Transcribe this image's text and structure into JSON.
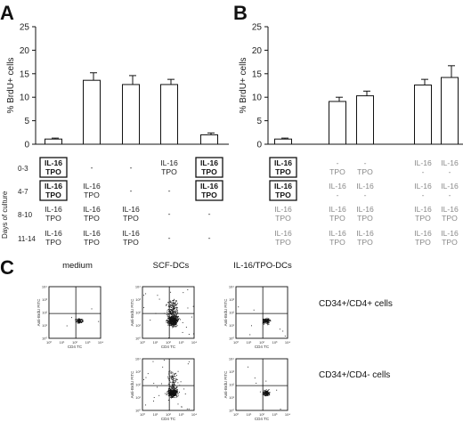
{
  "panels": {
    "a": "A",
    "b": "B",
    "c": "C"
  },
  "chart_data": [
    {
      "type": "bar",
      "panel": "A",
      "ylabel": "% BrdU+ cells",
      "ylim": [
        0,
        25
      ],
      "yticks": [
        "0",
        "5",
        "10",
        "15",
        "20",
        "25"
      ],
      "series": [
        {
          "values": [
            1.1,
            13.6,
            12.7,
            12.7,
            2.0
          ],
          "errors": [
            0.2,
            1.6,
            1.9,
            1.1,
            0.4
          ]
        }
      ],
      "row_label": "Days of culture",
      "rows": [
        {
          "label": "0-3",
          "cells": [
            "IL-16 TPO",
            "-",
            "-",
            "IL-16 TPO",
            "IL-16 TPO"
          ],
          "boxed": [
            true,
            false,
            false,
            false,
            true
          ]
        },
        {
          "label": "4-7",
          "cells": [
            "IL-16 TPO",
            "IL-16 TPO",
            "-",
            "-",
            "IL-16 TPO"
          ],
          "boxed": [
            true,
            false,
            false,
            false,
            true
          ]
        },
        {
          "label": "8-10",
          "cells": [
            "IL-16 TPO",
            "IL-16 TPO",
            "IL-16 TPO",
            "-",
            "-"
          ],
          "boxed": [
            false,
            false,
            false,
            false,
            false
          ]
        },
        {
          "label": "11-14",
          "cells": [
            "IL-16 TPO",
            "IL-16 TPO",
            "IL-16 TPO",
            "-",
            "-"
          ],
          "boxed": [
            false,
            false,
            false,
            false,
            false
          ]
        }
      ]
    },
    {
      "type": "bar",
      "panel": "B",
      "ylabel": "% BrdU+ cells",
      "ylim": [
        0,
        25
      ],
      "yticks": [
        "0",
        "5",
        "10",
        "15",
        "20",
        "25"
      ],
      "series": [
        {
          "values": [
            1.1,
            9.1,
            10.3,
            12.6,
            14.2
          ],
          "errors": [
            0.2,
            0.9,
            1.0,
            1.2,
            2.5
          ]
        }
      ],
      "rows": [
        {
          "cells": [
            "IL-16 TPO",
            "- TPO",
            "- TPO",
            "IL-16 -",
            "IL-16 -"
          ],
          "boxed": [
            true,
            false,
            false,
            false,
            false
          ]
        },
        {
          "cells": [
            "IL-16 TPO",
            "IL-16 -",
            "IL-16 -",
            "IL-16 -",
            "IL-16 -"
          ],
          "boxed": [
            true,
            false,
            false,
            false,
            false
          ]
        },
        {
          "cells": [
            "IL-16 TPO",
            "IL-16 TPO",
            "IL-16 TPO",
            "IL-16 TPO",
            "IL-16 TPO"
          ],
          "boxed": [
            false,
            false,
            false,
            false,
            false
          ]
        },
        {
          "cells": [
            "IL-16 TPO",
            "IL-16 TPO",
            "IL-16 TPO",
            "IL-16 TPO",
            "IL-16 TPO"
          ],
          "boxed": [
            false,
            false,
            false,
            false,
            false
          ]
        }
      ]
    },
    {
      "type": "scatter",
      "panel": "C",
      "columns": [
        "medium",
        "SCF-DCs",
        "IL-16/TPO-DCs"
      ],
      "rows": [
        "CD34+/CD4+ cells",
        "CD34+/CD4- cells"
      ],
      "xlabel": "CD4 TC",
      "ylabel": "Anti-BrdU FITC",
      "tick_labels": [
        "10⁰",
        "10¹",
        "10²",
        "10³",
        "10⁴"
      ]
    }
  ]
}
